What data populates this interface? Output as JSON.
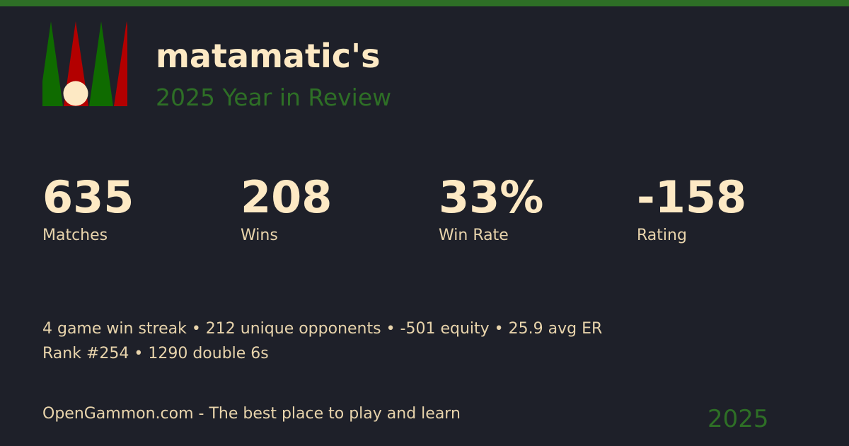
{
  "colors": {
    "accent": "#2e6f26",
    "background": "#1e2029",
    "text": "#fde9c4",
    "logo_green": "#0f6b00",
    "logo_red": "#b30000"
  },
  "header": {
    "username": "matamatic's",
    "subtitle": "2025 Year in Review"
  },
  "stats": [
    {
      "value": "635",
      "label": "Matches"
    },
    {
      "value": "208",
      "label": "Wins"
    },
    {
      "value": "33%",
      "label": "Win Rate"
    },
    {
      "value": "-158",
      "label": "Rating"
    }
  ],
  "details": {
    "line1": "4 game win streak • 212 unique opponents • -501 equity • 25.9 avg ER",
    "line2": "Rank #254 • 1290 double 6s"
  },
  "footer": {
    "tagline": "OpenGammon.com - The best place to play and learn",
    "year": "2025"
  }
}
